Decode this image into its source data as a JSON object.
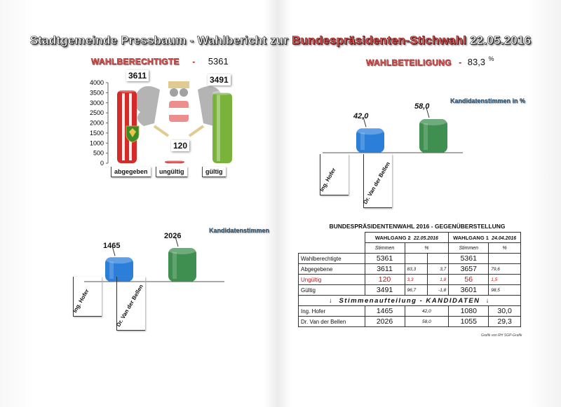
{
  "header": {
    "title_part1": "Stadtgemeinde Pressbaum - Wahlbericht zur ",
    "title_part2": "Bundespräsidenten-Stichwahl",
    "title_part3": " 22.05.2016"
  },
  "kpis": {
    "eligible_label": "WAHLBERECHTIGTE",
    "eligible_sep": "-",
    "eligible_value": "5361",
    "turnout_label": "WAHLBETEILIGUNG",
    "turnout_sep": "-",
    "turnout_value": "83,3",
    "turnout_unit": "%"
  },
  "colors": {
    "red": "#d42a2a",
    "green": "#7ab33b",
    "blue": "#2b7fd8",
    "darkgreen": "#3f8f50"
  },
  "icons": [
    "austrian-coat-of-arms-icon",
    "municipal-shield-icon",
    "down-arrow-icon"
  ],
  "chart_data": [
    {
      "type": "bar",
      "title": "",
      "categories": [
        "abgegeben",
        "ungültig",
        "gültig"
      ],
      "values": [
        3611,
        120,
        3491
      ],
      "value_labels": [
        "3611",
        "120",
        "3491"
      ],
      "ylim": [
        0,
        4000
      ],
      "yticks": [
        "0",
        "500",
        "1000",
        "1500",
        "2000",
        "2500",
        "3000",
        "3500",
        "4000"
      ],
      "grid": false
    },
    {
      "type": "bar",
      "title": "Kandidatenstimmen in %",
      "categories": [
        "Ing. Hofer",
        "Dr. Van der Bellen"
      ],
      "values": [
        42.0,
        58.0
      ],
      "value_labels": [
        "42,0",
        "58,0"
      ]
    },
    {
      "type": "bar",
      "title": "Kandidatenstimmen",
      "categories": [
        "Ing. Hofer",
        "Dr. Van der Bellen"
      ],
      "values": [
        1465,
        2026
      ],
      "value_labels": [
        "1465",
        "2026"
      ]
    }
  ],
  "comparison_table": {
    "title": "BUNDESPRÄSIDENTENWAHL 2016 - GEGENÜBERSTELLUNG",
    "round2_label": "WAHLGANG 2",
    "round2_date": "22.05.2016",
    "round1_label": "WAHLGANG 1",
    "round1_date": "24.04.2016",
    "col_votes": "Stimmen",
    "col_pct": "%",
    "rows": [
      {
        "label": "Wahlberechtigte",
        "r2_votes": "5361",
        "r2_pct": "",
        "r2_diff": "",
        "r1_votes": "5361",
        "r1_pct": ""
      },
      {
        "label": "Abgegebene",
        "r2_votes": "3611",
        "r2_pct": "83,3",
        "r2_diff": "3,7",
        "r1_votes": "3657",
        "r1_pct": "79,6"
      },
      {
        "label": "Ungültig",
        "r2_votes": "120",
        "r2_pct": "3,3",
        "r2_diff": "1,8",
        "r1_votes": "56",
        "r1_pct": "1,5"
      },
      {
        "label": "Gültig",
        "r2_votes": "3491",
        "r2_pct": "96,7",
        "r2_diff": "-1,8",
        "r1_votes": "3601",
        "r1_pct": "98,5"
      }
    ],
    "section_title": "Stimmenaufteilung - KANDIDATEN",
    "candidate_rows": [
      {
        "label": "Ing. Hofer",
        "r2_votes": "1465",
        "r2_pct": "42,0",
        "r1_votes": "1080",
        "r1_pct": "30,0"
      },
      {
        "label": "Dr. Van der Bellen",
        "r2_votes": "2026",
        "r2_pct": "58,0",
        "r1_votes": "1055",
        "r1_pct": "29,3"
      }
    ],
    "footer": "Grafik von RH SGP-Grafik"
  }
}
